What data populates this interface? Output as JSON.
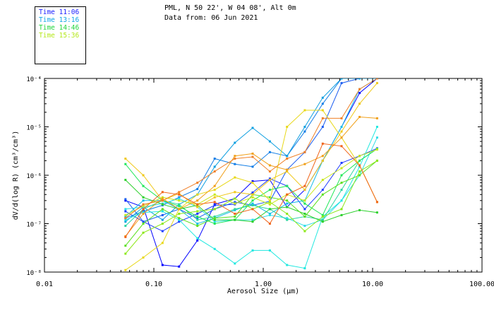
{
  "header": {
    "line1": "PML, N 50 22', W 04 08', Alt 0m",
    "line2": "Data from: 06 Jun 2021"
  },
  "legend": [
    {
      "label": "Time 11:06",
      "color": "#1f22ff"
    },
    {
      "label": "Time 13:16",
      "color": "#13a6e6"
    },
    {
      "label": "Time 14:46",
      "color": "#22d63d"
    },
    {
      "label": "Time 15:36",
      "color": "#b4e81a"
    }
  ],
  "chart_data": {
    "type": "line",
    "xscale": "log",
    "yscale": "log",
    "xlim": [
      0.01,
      100
    ],
    "ylim": [
      1e-08,
      0.0001
    ],
    "xlabel": "Aerosol Size (μm)",
    "ylabel": "dV/d(log R) (cm³/cm³)",
    "x_ticks": [
      "0.01",
      "0.10",
      "1.00",
      "10.00",
      "100.00"
    ],
    "y_ticks": [
      "10⁻⁸",
      "10⁻⁷",
      "10⁻⁶",
      "10⁻⁵",
      "10⁻⁴"
    ],
    "x": [
      0.055,
      0.08,
      0.12,
      0.17,
      0.25,
      0.36,
      0.55,
      0.8,
      1.15,
      1.65,
      2.4,
      3.5,
      5.2,
      7.6,
      11
    ],
    "series": [
      {
        "color": "#0000ff",
        "values": [
          3e-07,
          2.2e-07,
          1.4e-08,
          1.3e-08,
          4.5e-08,
          2.5e-07,
          3.3e-07,
          7.5e-07,
          8e-07,
          2.2e-07,
          5e-07,
          2e-06,
          1e-05,
          5e-05,
          0.0001
        ]
      },
      {
        "color": "#1e3cff",
        "values": [
          1.8e-07,
          1.1e-07,
          7e-08,
          1.1e-07,
          1.6e-07,
          2.4e-07,
          2.5e-07,
          4.4e-07,
          8.5e-07,
          6e-07,
          2e-07,
          5e-07,
          1.8e-06,
          2.5e-06,
          3.6e-06
        ]
      },
      {
        "color": "#1a5cf0",
        "values": [
          3.2e-07,
          1.1e-07,
          1.5e-07,
          2e-07,
          1.3e-07,
          2e-07,
          2.8e-07,
          2.4e-07,
          2.9e-07,
          1.3e-06,
          3e-06,
          1e-05,
          8e-05,
          0.0001,
          0.0001
        ]
      },
      {
        "color": "#137ee6",
        "values": [
          1.3e-07,
          1.8e-07,
          2.4e-07,
          3.5e-07,
          5.2e-07,
          2.2e-06,
          1.7e-06,
          1.5e-06,
          3e-06,
          2.5e-06,
          8e-06,
          3e-05,
          0.0001,
          0.0001,
          0.0001
        ]
      },
      {
        "color": "#0e9fe0",
        "values": [
          1.1e-07,
          2.2e-07,
          1.2e-07,
          2.5e-07,
          4e-07,
          1.5e-06,
          4.7e-06,
          9.5e-06,
          5e-06,
          2.5e-06,
          1e-05,
          4e-05,
          0.0001,
          0.0001,
          0.0001
        ]
      },
      {
        "color": "#16bde8",
        "values": [
          1.4e-07,
          3e-07,
          3e-07,
          2e-07,
          1e-07,
          1.3e-07,
          1.9e-07,
          2.6e-07,
          1.6e-07,
          2.6e-07,
          3e-07,
          2e-06,
          1e-05,
          6e-05,
          0.0001
        ]
      },
      {
        "color": "#2ddde8",
        "values": [
          2e-07,
          2.2e-07,
          2.6e-07,
          3.3e-07,
          2.2e-07,
          1.1e-07,
          1.2e-07,
          1.2e-07,
          1.5e-07,
          1.3e-07,
          9e-08,
          1.2e-07,
          3e-07,
          1e-06,
          6e-06
        ]
      },
      {
        "color": "#22e8e0",
        "values": [
          1.2e-07,
          1.7e-07,
          1.8e-07,
          1.2e-07,
          5e-08,
          3e-08,
          1.5e-08,
          2.8e-08,
          2.8e-08,
          1.4e-08,
          1.2e-08,
          1.4e-07,
          3e-07,
          1.5e-06,
          1e-05
        ]
      },
      {
        "color": "#2bd6a0",
        "values": [
          9e-08,
          2e-07,
          3e-07,
          2.5e-07,
          1.2e-07,
          1.4e-07,
          2e-07,
          2.4e-07,
          2e-07,
          1.2e-07,
          1.4e-07,
          1.2e-07,
          5e-07,
          2e-06,
          3.5e-06
        ]
      },
      {
        "color": "#22e85a",
        "values": [
          1.7e-06,
          6e-07,
          3e-07,
          2.3e-07,
          1.4e-07,
          1e-07,
          1.2e-07,
          3e-07,
          5e-07,
          6e-07,
          2.6e-07,
          1.5e-07,
          1e-06,
          2e-06,
          3.5e-06
        ]
      },
      {
        "color": "#2cd02c",
        "values": [
          8e-07,
          3.5e-07,
          2.5e-07,
          2e-07,
          2.4e-07,
          1.2e-07,
          1.2e-07,
          1.1e-07,
          2e-07,
          2.2e-07,
          1.6e-07,
          1.1e-07,
          1.5e-07,
          1.9e-07,
          1.7e-07
        ]
      },
      {
        "color": "#5ae020",
        "values": [
          3.5e-08,
          1e-07,
          2e-07,
          1.3e-07,
          9e-08,
          1.3e-07,
          1.4e-07,
          4e-07,
          3.5e-07,
          3e-07,
          1.4e-07,
          4e-07,
          7e-07,
          1e-06,
          2e-06
        ]
      },
      {
        "color": "#8de81a",
        "values": [
          2.4e-08,
          6.5e-08,
          1e-07,
          1.6e-07,
          1.8e-07,
          2e-07,
          3.3e-07,
          2e-07,
          2.8e-07,
          1.6e-07,
          7e-08,
          1.4e-07,
          2e-07,
          1.2e-06,
          2e-06
        ]
      },
      {
        "color": "#c8e81a",
        "values": [
          1.5e-07,
          2.3e-07,
          3.5e-07,
          3e-07,
          2.5e-07,
          4e-07,
          2.6e-07,
          3.5e-07,
          2.5e-07,
          4e-07,
          3e-07,
          8e-07,
          1.4e-06,
          2.5e-06,
          3.4e-06
        ]
      },
      {
        "color": "#e8d81a",
        "values": [
          1.1e-08,
          2e-08,
          4e-08,
          2e-07,
          4e-07,
          5e-07,
          9e-07,
          7e-07,
          3e-07,
          1e-05,
          2.2e-05,
          2.2e-05,
          6e-06,
          1.6e-06,
          2.8e-07
        ]
      },
      {
        "color": "#f0c81a",
        "values": [
          2.2e-06,
          1e-06,
          3e-07,
          4.2e-07,
          2.2e-07,
          3.5e-07,
          4.5e-07,
          4e-07,
          8e-07,
          1.2e-06,
          5e-07,
          2e-06,
          8e-06,
          3e-05,
          8e-05
        ]
      },
      {
        "color": "#f0a01a",
        "values": [
          5.5e-08,
          1.6e-07,
          3.3e-07,
          2e-07,
          3e-07,
          6e-07,
          2.5e-06,
          2.8e-06,
          1.6e-06,
          1.3e-06,
          1.7e-06,
          2.5e-06,
          6e-06,
          1.6e-05,
          1.5e-05
        ]
      },
      {
        "color": "#f08028",
        "values": [
          1.3e-07,
          2.5e-07,
          3e-07,
          4.5e-07,
          7e-07,
          1.2e-06,
          2.2e-06,
          2.4e-06,
          1.2e-06,
          2.2e-06,
          3e-06,
          1.5e-05,
          1.5e-05,
          6e-05,
          0.0001
        ]
      },
      {
        "color": "#f06418",
        "values": [
          5.3e-08,
          2e-07,
          4.5e-07,
          4e-07,
          2.5e-07,
          2.8e-07,
          1.6e-07,
          2e-07,
          1e-07,
          4e-07,
          6e-07,
          4.5e-06,
          4e-06,
          1.6e-06,
          2.8e-07
        ]
      }
    ]
  }
}
